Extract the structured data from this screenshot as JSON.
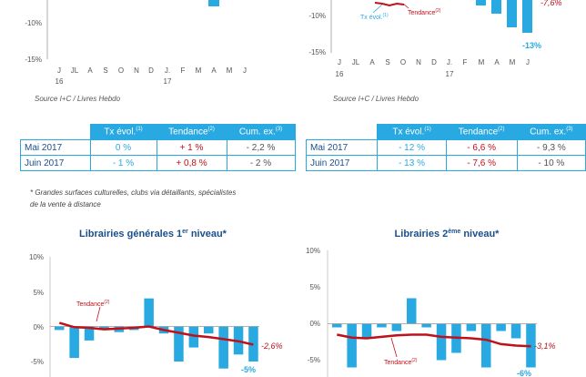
{
  "top_left": {
    "yticks": [
      "-10%",
      "-15%"
    ],
    "months": [
      "J",
      "JL",
      "A",
      "S",
      "O",
      "N",
      "D",
      "J.",
      "F",
      "M",
      "A",
      "M",
      "J"
    ],
    "year_a": "16",
    "year_b": "17",
    "source": "Source I+C / Livres Hebdo"
  },
  "top_right": {
    "yticks": [
      "-10%",
      "-15%"
    ],
    "months": [
      "J",
      "JL",
      "A",
      "S",
      "O",
      "N",
      "D",
      "J.",
      "F",
      "M",
      "A",
      "M",
      "J"
    ],
    "year_a": "16",
    "year_b": "17",
    "legend_tx": "Tx évol.",
    "legend_tendance": "Tendance",
    "sup": "(1)",
    "sup2": "(2)",
    "last_value_label": "-13%",
    "tendance_label": "-7,6%",
    "source": "Source I+C / Livres Hebdo"
  },
  "table_left": {
    "headers": [
      "Tx évol.",
      "Tendance",
      "Cum. ex."
    ],
    "sups": [
      "(1)",
      "(2)",
      "(3)"
    ],
    "rows": [
      {
        "label": "Mai 2017",
        "tx": "0 %",
        "tend": "+ 1 %",
        "cum": "- 2,2 %"
      },
      {
        "label": "Juin 2017",
        "tx": "- 1 %",
        "tend": "+ 0,8 %",
        "cum": "- 2 %"
      }
    ]
  },
  "table_right": {
    "headers": [
      "Tx évol.",
      "Tendance",
      "Cum. ex."
    ],
    "sups": [
      "(1)",
      "(2)",
      "(3)"
    ],
    "rows": [
      {
        "label": "Mai 2017",
        "tx": "- 12 %",
        "tend": "- 6,6 %",
        "cum": "- 9,3 %"
      },
      {
        "label": "Juin 2017",
        "tx": "- 13 %",
        "tend": "- 7,6 %",
        "cum": "- 10 %"
      }
    ]
  },
  "footnote": {
    "line1": "* Grandes surfaces culturelles, clubs via détaillants, spécialistes",
    "line2": "de la vente à distance"
  },
  "colors": {
    "bar": "#29a9e1",
    "trend": "#c0101a",
    "title": "#1a4e8a"
  },
  "chart_data": [
    {
      "type": "bar",
      "title": "Librairies générales 1er niveau*",
      "title_main": "Librairies générales 1",
      "title_sup": "er",
      "title_end": " niveau*",
      "yticks": [
        "10%",
        "5%",
        "0%",
        "-5%"
      ],
      "ylim": [
        -6,
        10
      ],
      "series": [
        {
          "name": "Tx évol.",
          "values": [
            -0.5,
            -4.5,
            -2.0,
            -0.5,
            -0.8,
            -0.5,
            4.0,
            -1.0,
            -5.0,
            -3.0,
            -1.0,
            -6.0,
            -4.0,
            -5.0
          ]
        },
        {
          "name": "Tendance",
          "type": "line",
          "values": [
            0.5,
            -0.1,
            -0.2,
            -0.4,
            -0.3,
            -0.2,
            0.0,
            -0.5,
            -0.9,
            -1.3,
            -1.5,
            -1.8,
            -2.1,
            -2.6
          ]
        }
      ],
      "legend_label": "Tendance",
      "legend_sup": "(2)",
      "last_value_label": "-5%",
      "tendance_label": "-2,6%"
    },
    {
      "type": "bar",
      "title": "Librairies 2ème niveau*",
      "title_main": "Librairies 2",
      "title_sup": "ème",
      "title_end": " niveau*",
      "yticks": [
        "10%",
        "5%",
        "0%",
        "-5%"
      ],
      "ylim": [
        -6,
        10
      ],
      "series": [
        {
          "name": "Tx évol.",
          "values": [
            -0.5,
            -6.0,
            -2.0,
            -0.5,
            -1.0,
            3.5,
            -0.5,
            -5.0,
            -4.0,
            -1.0,
            -6.0,
            -1.0,
            -2.0,
            -6.0
          ]
        },
        {
          "name": "Tendance",
          "type": "line",
          "values": [
            -1.5,
            -1.9,
            -2.0,
            -1.8,
            -1.6,
            -1.5,
            -1.5,
            -1.8,
            -1.9,
            -2.0,
            -2.2,
            -2.8,
            -3.0,
            -3.1
          ]
        }
      ],
      "legend_label": "Tendance",
      "legend_sup": "(2)",
      "last_value_label": "-6%",
      "tendance_label": "-3,1%"
    }
  ]
}
